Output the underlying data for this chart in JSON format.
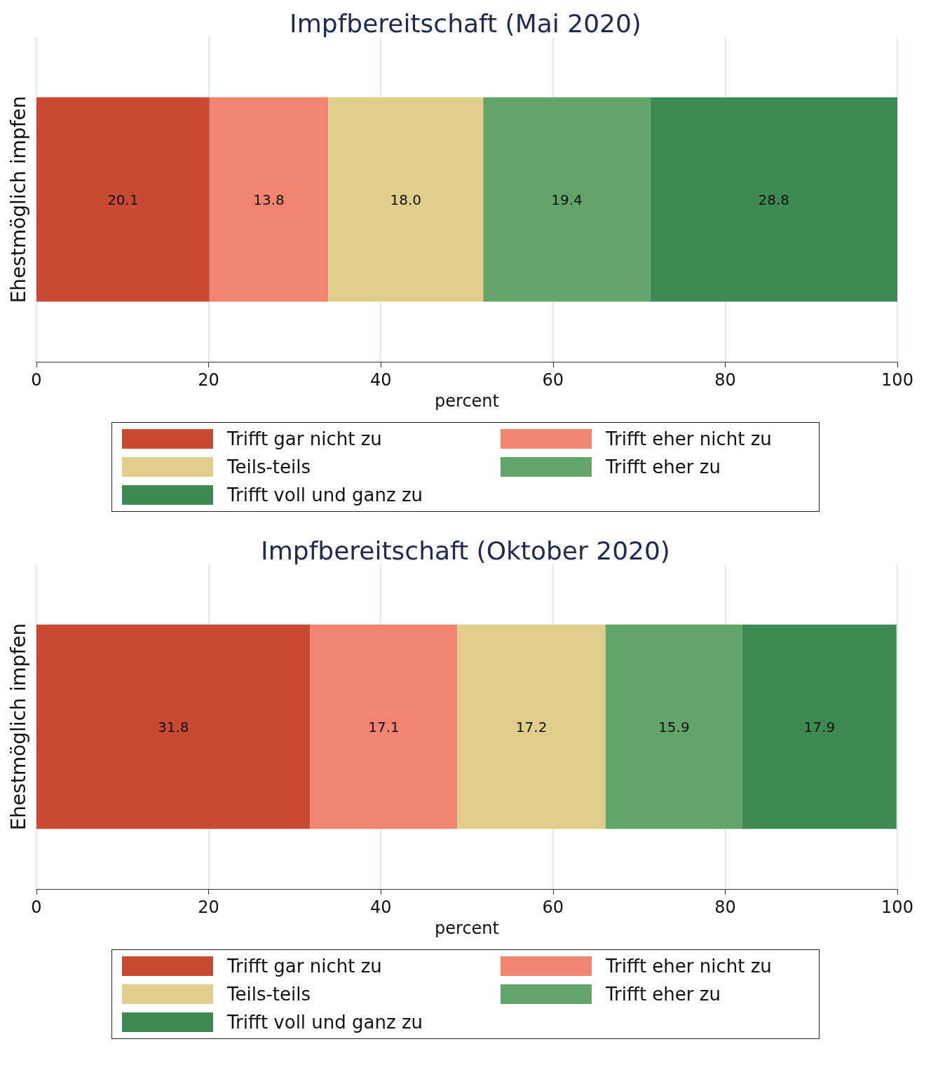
{
  "chart_data": [
    {
      "type": "bar",
      "title": "Impfbereitschaft (Mai 2020)",
      "orientation": "horizontal",
      "stacked": true,
      "categories": [
        "Ehestmöglich impfen"
      ],
      "xlabel": "percent",
      "xlim": [
        0,
        100
      ],
      "xticks": [
        0,
        20,
        40,
        60,
        80,
        100
      ],
      "grid": "x",
      "legend": "bottom",
      "series": [
        {
          "name": "Trifft gar nicht zu",
          "color": "#c94a33",
          "values": [
            20.1
          ],
          "value_labels": [
            "20.1"
          ]
        },
        {
          "name": "Trifft eher nicht zu",
          "color": "#f28472",
          "values": [
            13.8
          ],
          "value_labels": [
            "13.8"
          ]
        },
        {
          "name": "Teils-teils",
          "color": "#e0cf8a",
          "values": [
            18.0
          ],
          "value_labels": [
            "18.0"
          ]
        },
        {
          "name": "Trifft eher zu",
          "color": "#63a46b",
          "values": [
            19.4
          ],
          "value_labels": [
            "19.4"
          ]
        },
        {
          "name": "Trifft voll und ganz zu",
          "color": "#3e8a55",
          "values": [
            28.8
          ],
          "value_labels": [
            "28.8"
          ]
        }
      ]
    },
    {
      "type": "bar",
      "title": "Impfbereitschaft (Oktober 2020)",
      "orientation": "horizontal",
      "stacked": true,
      "categories": [
        "Ehestmöglich impfen"
      ],
      "xlabel": "percent",
      "xlim": [
        0,
        100
      ],
      "xticks": [
        0,
        20,
        40,
        60,
        80,
        100
      ],
      "grid": "x",
      "legend": "bottom",
      "series": [
        {
          "name": "Trifft gar nicht zu",
          "color": "#c94a33",
          "values": [
            31.8
          ],
          "value_labels": [
            "31.8"
          ]
        },
        {
          "name": "Trifft eher nicht zu",
          "color": "#f28472",
          "values": [
            17.1
          ],
          "value_labels": [
            "17.1"
          ]
        },
        {
          "name": "Teils-teils",
          "color": "#e0cf8a",
          "values": [
            17.2
          ],
          "value_labels": [
            "17.2"
          ]
        },
        {
          "name": "Trifft eher zu",
          "color": "#63a46b",
          "values": [
            15.9
          ],
          "value_labels": [
            "15.9"
          ]
        },
        {
          "name": "Trifft voll und ganz zu",
          "color": "#3e8a55",
          "values": [
            17.9
          ],
          "value_labels": [
            "17.9"
          ]
        }
      ]
    }
  ]
}
